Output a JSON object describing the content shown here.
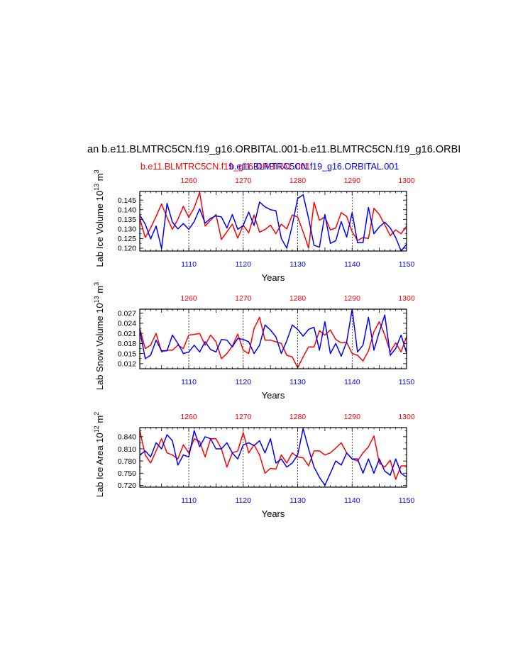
{
  "main_title": "an b.e11.BLMTRC5CN.f19_g16.ORBITAL.001-b.e11.BLMTRC5CN.f19_g16.ORBI",
  "subtitle_red": "b.e11.BLMTRC5CN.f19_g16.ORBITAL.001",
  "subtitle_blue": "b.e11.BLMTRC5CN.f19_g16.ORBITAL.001",
  "colors": {
    "red": "#ff0000",
    "blue": "#0000ff",
    "axis": "#000000"
  },
  "chart_data": [
    {
      "type": "line",
      "ylabel": "Lab Ice Volume 10^13 m^3",
      "ylabel_main": "Lab Ice Volume 10",
      "ylabel_exp": "13",
      "ylabel_unit": "m",
      "ylabel_unit_exp": "3",
      "xlabel": "Years",
      "xlim": [
        1101,
        1150
      ],
      "top_xlim": [
        1251,
        1300
      ],
      "ylim": [
        0.1185,
        0.1495
      ],
      "yticks": [
        0.12,
        0.125,
        0.13,
        0.135,
        0.14,
        0.145
      ],
      "ytick_labels": [
        "0.120",
        "0.125",
        "0.130",
        "0.135",
        "0.140",
        "0.145"
      ],
      "xticks": [
        1110,
        1120,
        1130,
        1140,
        1150
      ],
      "xtick_labels": [
        "1110",
        "1120",
        "1130",
        "1140",
        "1150"
      ],
      "top_xticks": [
        1260,
        1270,
        1280,
        1290,
        1300
      ],
      "top_xtick_labels": [
        "1260",
        "1270",
        "1280",
        "1290",
        "1300"
      ],
      "series": [
        {
          "name": "b.e11.BLMTRC5CN.f19_g16.ORBITAL.001 (years 1251-1300)",
          "color": "red",
          "axis": "top",
          "values": [
            0.1355,
            0.1255,
            0.1305,
            0.1365,
            0.143,
            0.136,
            0.1298,
            0.135,
            0.1418,
            0.136,
            0.141,
            0.149,
            0.1315,
            0.1345,
            0.1375,
            0.1245,
            0.1285,
            0.1325,
            0.1252,
            0.132,
            0.128,
            0.1372,
            0.1283,
            0.1297,
            0.132,
            0.1275,
            0.1325,
            0.13,
            0.1373,
            0.1362,
            0.1285,
            0.12,
            0.1438,
            0.1345,
            0.1363,
            0.1295,
            0.1305,
            0.1385,
            0.1365,
            0.1285,
            0.124,
            0.1255,
            0.125,
            0.1407,
            0.1375,
            0.1322,
            0.1265,
            0.1295,
            0.1275,
            0.1315
          ]
        },
        {
          "name": "b.e11.BLMTRC5CN.f19_g16.ORBITAL.001 (years 1101-1150)",
          "color": "blue",
          "axis": "bottom",
          "values": [
            0.1372,
            0.1325,
            0.1248,
            0.1315,
            0.1198,
            0.1433,
            0.1335,
            0.13,
            0.1328,
            0.1298,
            0.1338,
            0.1405,
            0.133,
            0.1355,
            0.1368,
            0.1362,
            0.1305,
            0.1375,
            0.1298,
            0.1318,
            0.1388,
            0.1318,
            0.144,
            0.1415,
            0.14,
            0.1395,
            0.125,
            0.12,
            0.1318,
            0.1458,
            0.1478,
            0.1355,
            0.1215,
            0.1205,
            0.1375,
            0.1225,
            0.1238,
            0.1338,
            0.1258,
            0.1385,
            0.1228,
            0.1228,
            0.1412,
            0.1275,
            0.131,
            0.1335,
            0.1305,
            0.1255,
            0.1185,
            0.122
          ]
        }
      ]
    },
    {
      "type": "line",
      "ylabel": "Lab Snow Volume 10^13 m^3",
      "ylabel_main": "Lab Snow Volume 10",
      "ylabel_exp": "13",
      "ylabel_unit": "m",
      "ylabel_unit_exp": "3",
      "xlabel": "Years",
      "xlim": [
        1101,
        1150
      ],
      "top_xlim": [
        1251,
        1300
      ],
      "ylim": [
        0.0105,
        0.0282
      ],
      "yticks": [
        0.012,
        0.015,
        0.018,
        0.021,
        0.024,
        0.027
      ],
      "ytick_labels": [
        "0.012",
        "0.015",
        "0.018",
        "0.021",
        "0.024",
        "0.027"
      ],
      "xticks": [
        1110,
        1120,
        1130,
        1140,
        1150
      ],
      "xtick_labels": [
        "1110",
        "1120",
        "1130",
        "1140",
        "1150"
      ],
      "top_xticks": [
        1260,
        1270,
        1280,
        1290,
        1300
      ],
      "top_xtick_labels": [
        "1260",
        "1270",
        "1280",
        "1290",
        "1300"
      ],
      "series": [
        {
          "name": "b.e11.BLMTRC5CN.f19_g16.ORBITAL.001 (years 1251-1300)",
          "color": "red",
          "axis": "top",
          "values": [
            0.0225,
            0.0165,
            0.0175,
            0.021,
            0.0155,
            0.016,
            0.016,
            0.0175,
            0.0165,
            0.0205,
            0.0207,
            0.021,
            0.0175,
            0.0205,
            0.0185,
            0.0135,
            0.015,
            0.0172,
            0.0208,
            0.016,
            0.015,
            0.0225,
            0.0258,
            0.019,
            0.019,
            0.0185,
            0.018,
            0.0145,
            0.014,
            0.0108,
            0.014,
            0.017,
            0.017,
            0.0218,
            0.0205,
            0.022,
            0.0192,
            0.0182,
            0.0183,
            0.015,
            0.0145,
            0.0128,
            0.0158,
            0.0215,
            0.0245,
            0.0205,
            0.0155,
            0.0182,
            0.0155,
            0.02
          ]
        },
        {
          "name": "b.e11.BLMTRC5CN.f19_g16.ORBITAL.001 (years 1101-1150)",
          "color": "blue",
          "axis": "bottom",
          "values": [
            0.022,
            0.0135,
            0.0145,
            0.019,
            0.0158,
            0.0158,
            0.0205,
            0.018,
            0.015,
            0.0155,
            0.0175,
            0.0155,
            0.0185,
            0.0162,
            0.0155,
            0.0192,
            0.019,
            0.017,
            0.0195,
            0.0192,
            0.0185,
            0.015,
            0.0175,
            0.0235,
            0.022,
            0.02,
            0.015,
            0.0188,
            0.0235,
            0.0222,
            0.0202,
            0.0222,
            0.0228,
            0.016,
            0.0245,
            0.015,
            0.018,
            0.0142,
            0.0185,
            0.0282,
            0.0155,
            0.0175,
            0.0258,
            0.016,
            0.0215,
            0.0265,
            0.0145,
            0.0165,
            0.0205,
            0.0152
          ]
        }
      ]
    },
    {
      "type": "line",
      "ylabel": "Lab Ice Area 10^12 m^2",
      "ylabel_main": "Lab Ice Area 10",
      "ylabel_exp": "12",
      "ylabel_unit": "m",
      "ylabel_unit_exp": "2",
      "xlabel": "Years",
      "xlim": [
        1101,
        1150
      ],
      "top_xlim": [
        1251,
        1300
      ],
      "ylim": [
        0.7155,
        0.8625
      ],
      "yticks": [
        0.72,
        0.75,
        0.78,
        0.81,
        0.84
      ],
      "ytick_labels": [
        "0.720",
        "0.750",
        "0.780",
        "0.810",
        "0.840"
      ],
      "xticks": [
        1110,
        1120,
        1130,
        1140,
        1150
      ],
      "xtick_labels": [
        "1110",
        "1120",
        "1130",
        "1140",
        "1150"
      ],
      "top_xticks": [
        1260,
        1270,
        1280,
        1290,
        1300
      ],
      "top_xtick_labels": [
        "1260",
        "1270",
        "1280",
        "1290",
        "1300"
      ],
      "series": [
        {
          "name": "b.e11.BLMTRC5CN.f19_g16.ORBITAL.001 (years 1251-1300)",
          "color": "red",
          "axis": "top",
          "values": [
            0.855,
            0.795,
            0.775,
            0.805,
            0.835,
            0.8,
            0.795,
            0.785,
            0.82,
            0.8,
            0.835,
            0.828,
            0.79,
            0.835,
            0.835,
            0.81,
            0.765,
            0.8,
            0.805,
            0.85,
            0.8,
            0.82,
            0.795,
            0.75,
            0.762,
            0.76,
            0.795,
            0.775,
            0.8,
            0.79,
            0.788,
            0.768,
            0.805,
            0.805,
            0.795,
            0.8,
            0.812,
            0.825,
            0.8,
            0.785,
            0.78,
            0.8,
            0.815,
            0.842,
            0.775,
            0.765,
            0.782,
            0.735,
            0.768,
            0.768
          ]
        },
        {
          "name": "b.e11.BLMTRC5CN.f19_g16.ORBITAL.001 (years 1101-1150)",
          "color": "blue",
          "axis": "bottom",
          "values": [
            0.795,
            0.805,
            0.79,
            0.825,
            0.81,
            0.845,
            0.83,
            0.77,
            0.795,
            0.79,
            0.855,
            0.815,
            0.84,
            0.835,
            0.81,
            0.81,
            0.825,
            0.8,
            0.785,
            0.82,
            0.825,
            0.818,
            0.83,
            0.8,
            0.835,
            0.775,
            0.785,
            0.765,
            0.775,
            0.795,
            0.86,
            0.81,
            0.765,
            0.74,
            0.72,
            0.75,
            0.78,
            0.77,
            0.8,
            0.785,
            0.785,
            0.75,
            0.785,
            0.75,
            0.785,
            0.755,
            0.745,
            0.785,
            0.75,
            0.74
          ]
        }
      ]
    }
  ]
}
